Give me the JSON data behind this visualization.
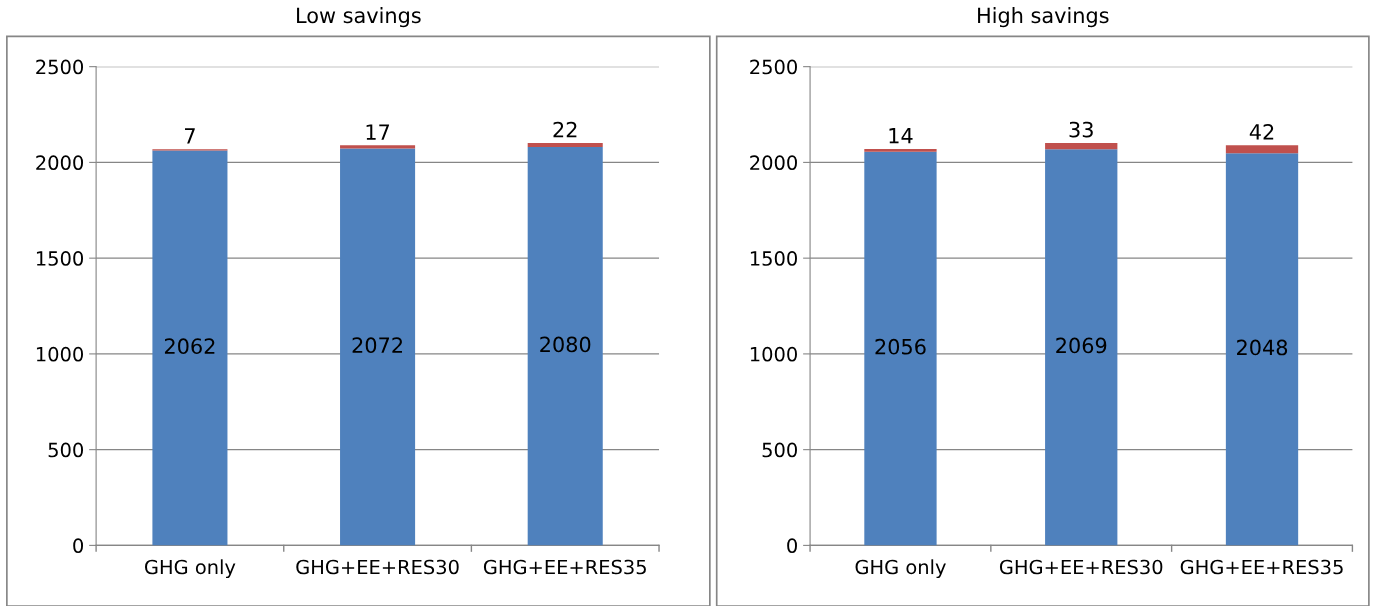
{
  "chart_data": [
    {
      "type": "bar",
      "title": "Low savings",
      "categories": [
        "GHG only",
        "GHG+EE+RES30",
        "GHG+EE+RES35"
      ],
      "stacked": true,
      "data_labels": true,
      "grid": "y",
      "legend": false,
      "ylim": [
        0,
        2500
      ],
      "yticks": [
        0,
        500,
        1000,
        1500,
        2000,
        2500
      ],
      "series": [
        {
          "color": "#4f81bd",
          "values": [
            2062,
            2072,
            2080
          ]
        },
        {
          "color": "#c0504d",
          "values": [
            7,
            17,
            22
          ]
        }
      ]
    },
    {
      "type": "bar",
      "title": "High savings",
      "categories": [
        "GHG only",
        "GHG+EE+RES30",
        "GHG+EE+RES35"
      ],
      "stacked": true,
      "data_labels": true,
      "grid": "y",
      "legend": false,
      "ylim": [
        0,
        2500
      ],
      "yticks": [
        0,
        500,
        1000,
        1500,
        2000,
        2500
      ],
      "series": [
        {
          "color": "#4f81bd",
          "values": [
            2056,
            2069,
            2048
          ]
        },
        {
          "color": "#c0504d",
          "values": [
            14,
            33,
            42
          ]
        }
      ]
    }
  ]
}
